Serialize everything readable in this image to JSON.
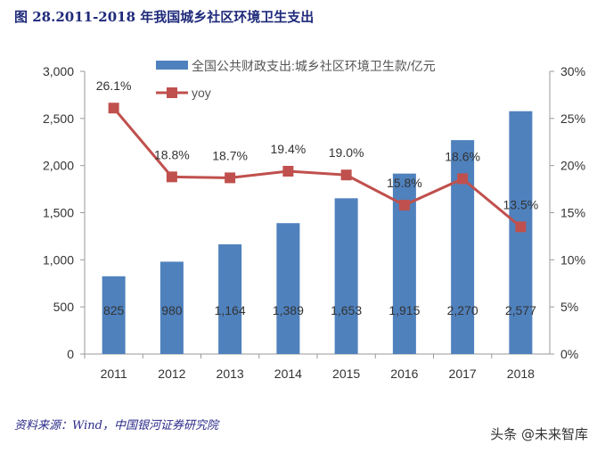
{
  "title": "图 28.2011-2018 年我国城乡社区环境卫生支出",
  "source": "资料来源：Wind，中国银河证券研究院",
  "watermark": "头条 @未来智库",
  "chart_data": {
    "type": "bar+line",
    "categories": [
      "2011",
      "2012",
      "2013",
      "2014",
      "2015",
      "2016",
      "2017",
      "2018"
    ],
    "series": [
      {
        "name": "全国公共财政支出:城乡社区环境卫生款/亿元",
        "type": "bar",
        "axis": "left",
        "color": "#4f81bd",
        "values": [
          825,
          980,
          1164,
          1389,
          1653,
          1915,
          2270,
          2577
        ],
        "labels": [
          "825",
          "980",
          "1,164",
          "1,389",
          "1,653",
          "1,915",
          "2,270",
          "2,577"
        ]
      },
      {
        "name": "yoy",
        "type": "line",
        "axis": "right",
        "color": "#c0504d",
        "values": [
          26.1,
          18.8,
          18.7,
          19.4,
          19.0,
          15.8,
          18.6,
          13.5
        ],
        "labels": [
          "26.1%",
          "18.8%",
          "18.7%",
          "19.4%",
          "19.0%",
          "15.8%",
          "18.6%",
          "13.5%"
        ]
      }
    ],
    "yleft": {
      "lim": [
        0,
        3000
      ],
      "ticks": [
        "0",
        "500",
        "1,000",
        "1,500",
        "2,000",
        "2,500",
        "3,000"
      ]
    },
    "yright": {
      "lim": [
        0,
        30
      ],
      "ticks": [
        "0%",
        "5%",
        "10%",
        "15%",
        "20%",
        "25%",
        "30%"
      ]
    },
    "legend": "top",
    "grid": false
  }
}
